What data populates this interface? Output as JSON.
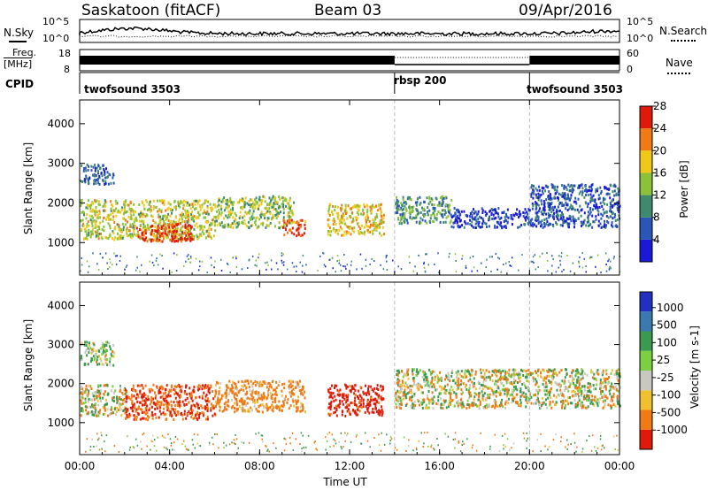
{
  "header": {
    "station": "Saskatoon (fitACF)",
    "beam": "Beam 03",
    "date": "09/Apr/2016"
  },
  "noise_panel": {
    "left_label": "N.Sky",
    "right_label": "N.Search",
    "left_ticks": [
      "10^5",
      "10^0"
    ],
    "right_ticks": [
      "10^5",
      "10^0"
    ]
  },
  "freq_panel": {
    "left_label_1": "Freq.",
    "left_label_2": "[MHz]",
    "right_label": "Nave",
    "left_ticks": [
      "18",
      "8"
    ],
    "right_ticks": [
      "60",
      "0"
    ]
  },
  "cpid_panel": {
    "label": "CPID",
    "segments": [
      {
        "name": "twofsound 3503",
        "start_hour": 0,
        "end_hour": 14
      },
      {
        "name": "rbsp 200",
        "start_hour": 14,
        "end_hour": 20
      },
      {
        "name": "twofsound 3503",
        "start_hour": 20,
        "end_hour": 24
      }
    ]
  },
  "axes": {
    "ylabel": "Slant Range [km]",
    "xlabel": "Time UT",
    "yticks": [
      "1000",
      "2000",
      "3000",
      "4000"
    ],
    "xticks": [
      "00:00",
      "04:00",
      "08:00",
      "12:00",
      "16:00",
      "20:00",
      "00:00"
    ]
  },
  "power_colorbar": {
    "label": "Power [dB]",
    "ticks": [
      "4",
      "8",
      "12",
      "16",
      "20",
      "24",
      "28"
    ],
    "colors": [
      "#1a1ad6",
      "#2a56b8",
      "#3f8a6e",
      "#8ac23a",
      "#f0c81a",
      "#f07a14",
      "#e01a0a"
    ]
  },
  "velocity_colorbar": {
    "label": "Velocity [m s-1]",
    "ticks": [
      "1000",
      "500",
      "100",
      "25",
      "-25",
      "-100",
      "-500",
      "-1000"
    ],
    "colors": [
      "#2030c0",
      "#3a7ab0",
      "#3a9a50",
      "#7ad040",
      "#c8c8c0",
      "#f0c030",
      "#f07a14",
      "#e01a0a"
    ]
  },
  "chart_data": [
    {
      "type": "heatmap",
      "title": "Power",
      "xlabel": "Time UT",
      "ylabel": "Slant Range [km]",
      "xlim": [
        0,
        24
      ],
      "ylim": [
        180,
        4600
      ],
      "colorbar": "Power [dB]",
      "scatter_regions": [
        {
          "t_start": 0.0,
          "t_end": 6.0,
          "r_low": 1100,
          "r_high": 2100,
          "level_db": 18
        },
        {
          "t_start": 2.5,
          "t_end": 5.0,
          "r_low": 1050,
          "r_high": 1500,
          "level_db": 28
        },
        {
          "t_start": 6.0,
          "t_end": 9.5,
          "r_low": 1400,
          "r_high": 2200,
          "level_db": 16
        },
        {
          "t_start": 9.0,
          "t_end": 10.0,
          "r_low": 1200,
          "r_high": 1600,
          "level_db": 26
        },
        {
          "t_start": 11.0,
          "t_end": 13.5,
          "r_low": 1200,
          "r_high": 2000,
          "level_db": 20
        },
        {
          "t_start": 14.0,
          "t_end": 16.5,
          "r_low": 1500,
          "r_high": 2200,
          "level_db": 12
        },
        {
          "t_start": 16.5,
          "t_end": 20.0,
          "r_low": 1400,
          "r_high": 1900,
          "level_db": 6
        },
        {
          "t_start": 20.0,
          "t_end": 24.0,
          "r_low": 1400,
          "r_high": 2500,
          "level_db": 8
        },
        {
          "t_start": 0.0,
          "t_end": 1.5,
          "r_low": 2500,
          "r_high": 3000,
          "level_db": 8
        }
      ]
    },
    {
      "type": "heatmap",
      "title": "Velocity",
      "xlabel": "Time UT",
      "ylabel": "Slant Range [km]",
      "xlim": [
        0,
        24
      ],
      "ylim": [
        180,
        4600
      ],
      "colorbar": "Velocity [m s-1]",
      "scatter_regions": [
        {
          "t_start": 0.0,
          "t_end": 2.0,
          "r_low": 1200,
          "r_high": 2000,
          "velocity": 0
        },
        {
          "t_start": 2.0,
          "t_end": 6.0,
          "r_low": 1100,
          "r_high": 2000,
          "velocity": -300
        },
        {
          "t_start": 6.0,
          "t_end": 10.0,
          "r_low": 1300,
          "r_high": 2100,
          "velocity": -150
        },
        {
          "t_start": 11.0,
          "t_end": 13.5,
          "r_low": 1200,
          "r_high": 2000,
          "velocity": -400
        },
        {
          "t_start": 14.0,
          "t_end": 24.0,
          "r_low": 1400,
          "r_high": 2400,
          "velocity": 0
        },
        {
          "t_start": 0.0,
          "t_end": 1.5,
          "r_low": 2500,
          "r_high": 3100,
          "velocity": 50
        }
      ]
    }
  ]
}
